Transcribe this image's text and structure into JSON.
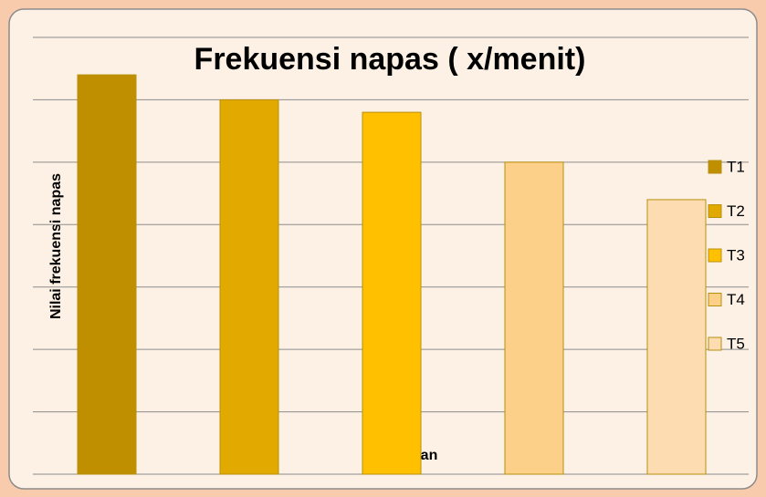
{
  "chart_data": {
    "type": "bar",
    "title": "Frekuensi napas ( x/menit)",
    "x_label": "Pertemuan",
    "y_label": "Nilai frekuensi napas",
    "categories": [
      null
    ],
    "series": [
      {
        "name": "T1",
        "color": "#bf8f00",
        "values": [
          6.4
        ]
      },
      {
        "name": "T2",
        "color": "#e2aa00",
        "values": [
          6.0
        ]
      },
      {
        "name": "T3",
        "color": "#ffc000",
        "values": [
          5.8
        ]
      },
      {
        "name": "T4",
        "color": "#fdd08a",
        "values": [
          5.0
        ]
      },
      {
        "name": "T5",
        "color": "#fddcb2",
        "values": [
          4.4
        ]
      }
    ],
    "ylim": [
      0,
      7
    ],
    "yticks": [
      0,
      1,
      2,
      3,
      4,
      5,
      6,
      7
    ],
    "grid": true,
    "legend": "right"
  }
}
